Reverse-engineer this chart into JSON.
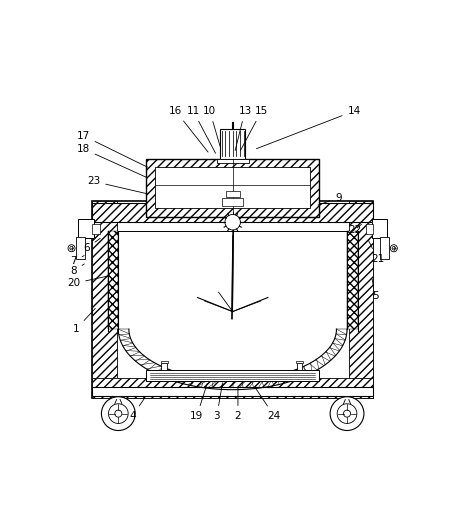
{
  "background_color": "#ffffff",
  "line_color": "#000000",
  "label_data": [
    [
      "1",
      [
        0.055,
        0.295
      ],
      [
        0.115,
        0.36
      ]
    ],
    [
      "2",
      [
        0.515,
        0.048
      ],
      [
        0.515,
        0.135
      ]
    ],
    [
      "3",
      [
        0.455,
        0.048
      ],
      [
        0.472,
        0.148
      ]
    ],
    [
      "4",
      [
        0.215,
        0.048
      ],
      [
        0.255,
        0.107
      ]
    ],
    [
      "5",
      [
        0.905,
        0.388
      ],
      [
        0.895,
        0.445
      ]
    ],
    [
      "6",
      [
        0.085,
        0.525
      ],
      [
        0.13,
        0.558
      ]
    ],
    [
      "7",
      [
        0.048,
        0.488
      ],
      [
        0.085,
        0.508
      ]
    ],
    [
      "8",
      [
        0.048,
        0.46
      ],
      [
        0.085,
        0.485
      ]
    ],
    [
      "9",
      [
        0.8,
        0.668
      ],
      [
        0.735,
        0.645
      ]
    ],
    [
      "10",
      [
        0.435,
        0.915
      ],
      [
        0.468,
        0.802
      ]
    ],
    [
      "11",
      [
        0.388,
        0.915
      ],
      [
        0.455,
        0.788
      ]
    ],
    [
      "13",
      [
        0.535,
        0.915
      ],
      [
        0.505,
        0.795
      ]
    ],
    [
      "14",
      [
        0.845,
        0.915
      ],
      [
        0.56,
        0.805
      ]
    ],
    [
      "15",
      [
        0.582,
        0.915
      ],
      [
        0.518,
        0.795
      ]
    ],
    [
      "16",
      [
        0.338,
        0.915
      ],
      [
        0.435,
        0.792
      ]
    ],
    [
      "17",
      [
        0.075,
        0.845
      ],
      [
        0.265,
        0.752
      ]
    ],
    [
      "18",
      [
        0.075,
        0.808
      ],
      [
        0.265,
        0.722
      ]
    ],
    [
      "19",
      [
        0.398,
        0.048
      ],
      [
        0.43,
        0.148
      ]
    ],
    [
      "20",
      [
        0.048,
        0.425
      ],
      [
        0.155,
        0.448
      ]
    ],
    [
      "21",
      [
        0.912,
        0.495
      ],
      [
        0.882,
        0.555
      ]
    ],
    [
      "22",
      [
        0.848,
        0.578
      ],
      [
        0.872,
        0.598
      ]
    ],
    [
      "23",
      [
        0.105,
        0.715
      ],
      [
        0.265,
        0.678
      ]
    ],
    [
      "24",
      [
        0.618,
        0.048
      ],
      [
        0.56,
        0.135
      ]
    ]
  ]
}
